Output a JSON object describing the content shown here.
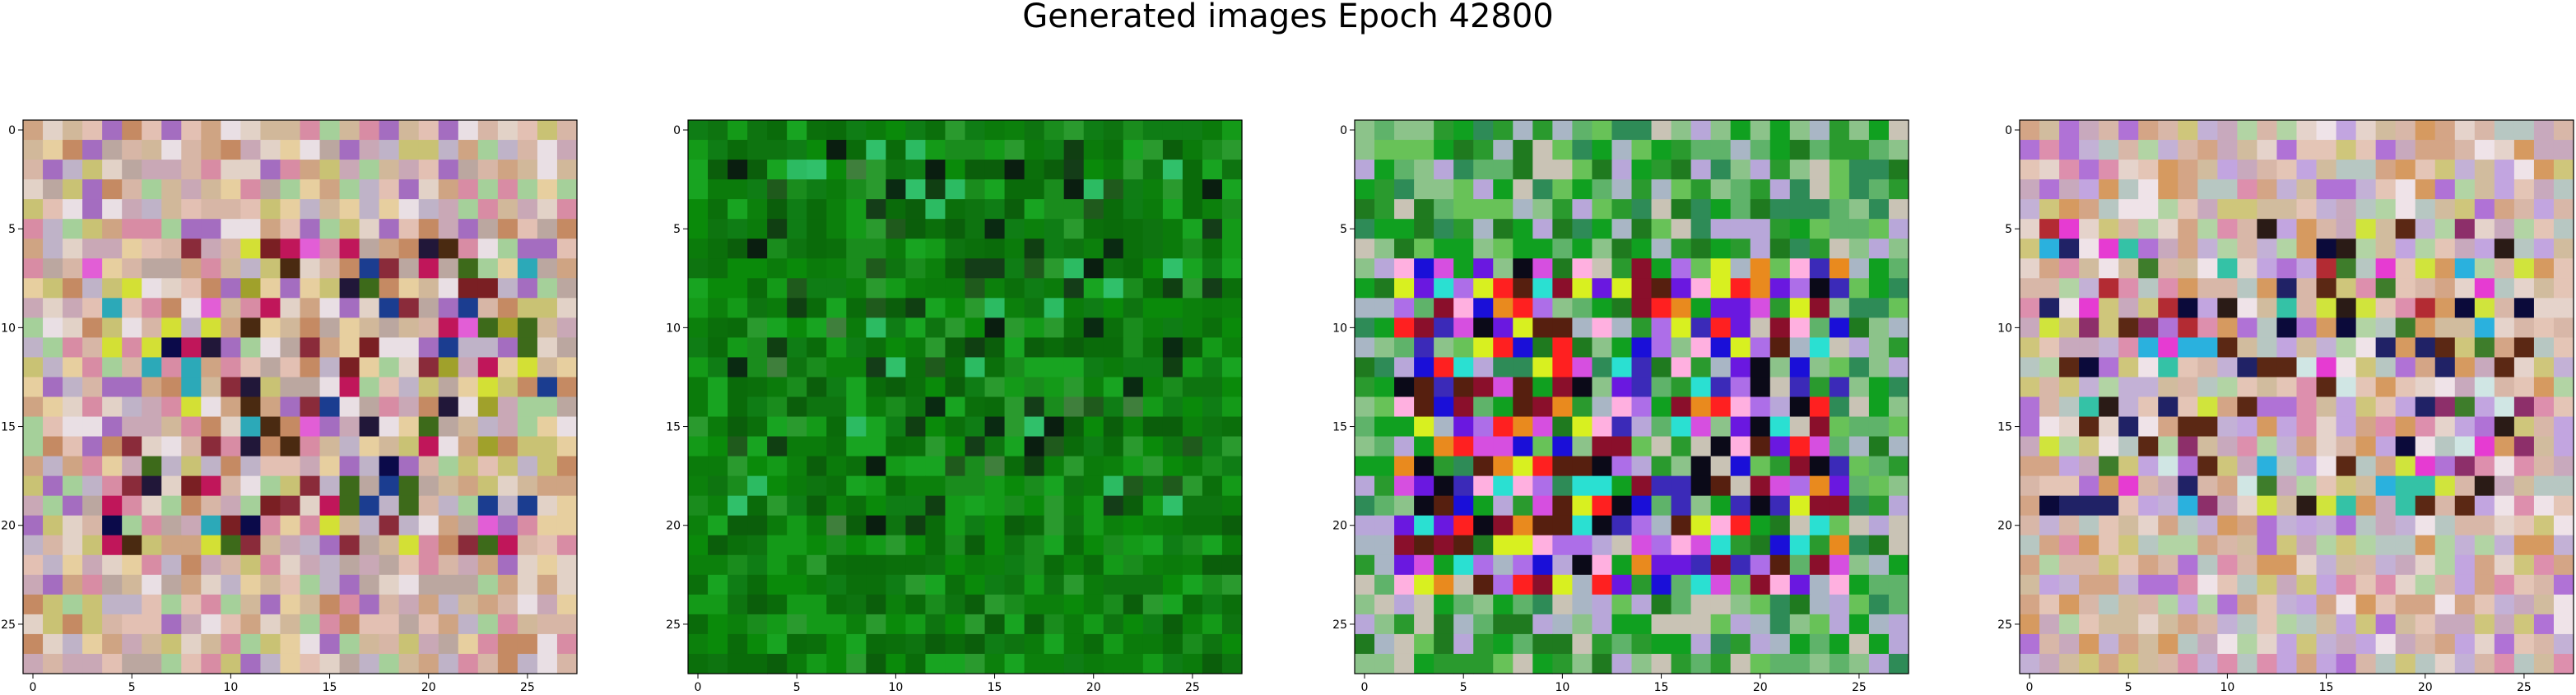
{
  "figure": {
    "title": "Generated images Epoch 42800"
  },
  "chart_data": {
    "type": "heatmap",
    "image_size": 28,
    "xlim": [
      -0.5,
      27.5
    ],
    "ylim": [
      27.5,
      -0.5
    ],
    "x_ticks": [
      0,
      5,
      10,
      15,
      20,
      25
    ],
    "y_ticks": [
      0,
      5,
      10,
      15,
      20,
      25
    ],
    "panels": [
      {
        "id": "image-1",
        "palette": [
          "#d7b6a6",
          "#e3c0b3",
          "#c9a8b6",
          "#cfa483",
          "#e2d2c7",
          "#d1b89a",
          "#bfb3c8",
          "#d88ca4",
          "#c9c274",
          "#a5d09a",
          "#a46dc0",
          "#e9dfe4",
          "#c58a63",
          "#e7cf9f",
          "#bba7a0"
        ],
        "accents": [
          "#211739",
          "#0b0a4a",
          "#7a1f23",
          "#c0165a",
          "#3d6a1a",
          "#2ca9b8",
          "#d3e035",
          "#4a2a11",
          "#e25ed6",
          "#1b3d90",
          "#a0a12b",
          "#8a2b3a"
        ],
        "accent_rows": [
          6,
          21
        ],
        "accent_cols": [
          3,
          26
        ],
        "accent_density": 0.3,
        "seed": 11
      },
      {
        "id": "image-2",
        "palette": [
          "#0a8a0a",
          "#0b7b0b",
          "#0f7d15",
          "#149a18",
          "#0a6b0a",
          "#1a8c1d",
          "#0b5e0b",
          "#2a9a2e",
          "#0e7410",
          "#18a421",
          "#0c800c",
          "#0b6f0b"
        ],
        "accents": [
          "#0a2a12",
          "#143d18",
          "#2cbb62",
          "#3f7f3c",
          "#1f5a1c",
          "#0a1e10",
          "#30c06a",
          "#103f12"
        ],
        "accent_rows": [
          1,
          20
        ],
        "accent_cols": [
          1,
          26
        ],
        "accent_density": 0.18,
        "seed": 27
      },
      {
        "id": "image-3",
        "palette": [
          "#2a9a2e",
          "#5fb36a",
          "#8cc38a",
          "#a9b6c5",
          "#1f7a1f",
          "#c9c3b5",
          "#68c258",
          "#10a020",
          "#2e8b57",
          "#b8a7d9"
        ],
        "accents": [
          "#1a0fd8",
          "#6a18e0",
          "#8a0f2b",
          "#0b0a18",
          "#d64fe0",
          "#2ae0d2",
          "#d8f020",
          "#ff2020",
          "#e98a1e",
          "#3b2ab8",
          "#ad6ee8",
          "#ffb0e0",
          "#561f0f"
        ],
        "accent_rows": [
          7,
          23
        ],
        "accent_cols": [
          2,
          24
        ],
        "accent_density": 0.7,
        "seed": 43
      },
      {
        "id": "image-4",
        "palette": [
          "#d8b7a8",
          "#e4c5b6",
          "#c8a9bd",
          "#d4a586",
          "#e5d3cb",
          "#d1bc9e",
          "#c3b1d6",
          "#dd8fad",
          "#cfc67b",
          "#b2d4a4",
          "#b072d6",
          "#efe3e8",
          "#d69a60",
          "#b7c7c2",
          "#c2a5e0"
        ],
        "accents": [
          "#202266",
          "#0b0a3a",
          "#2a1b16",
          "#e63bd2",
          "#2ab1de",
          "#3e7d2b",
          "#d0e43c",
          "#b32b33",
          "#34c2a6",
          "#8d2f6a",
          "#d0e6e4",
          "#5b2814"
        ],
        "accent_rows": [
          5,
          19
        ],
        "accent_cols": [
          1,
          25
        ],
        "accent_density": 0.3,
        "seed": 67
      }
    ]
  }
}
